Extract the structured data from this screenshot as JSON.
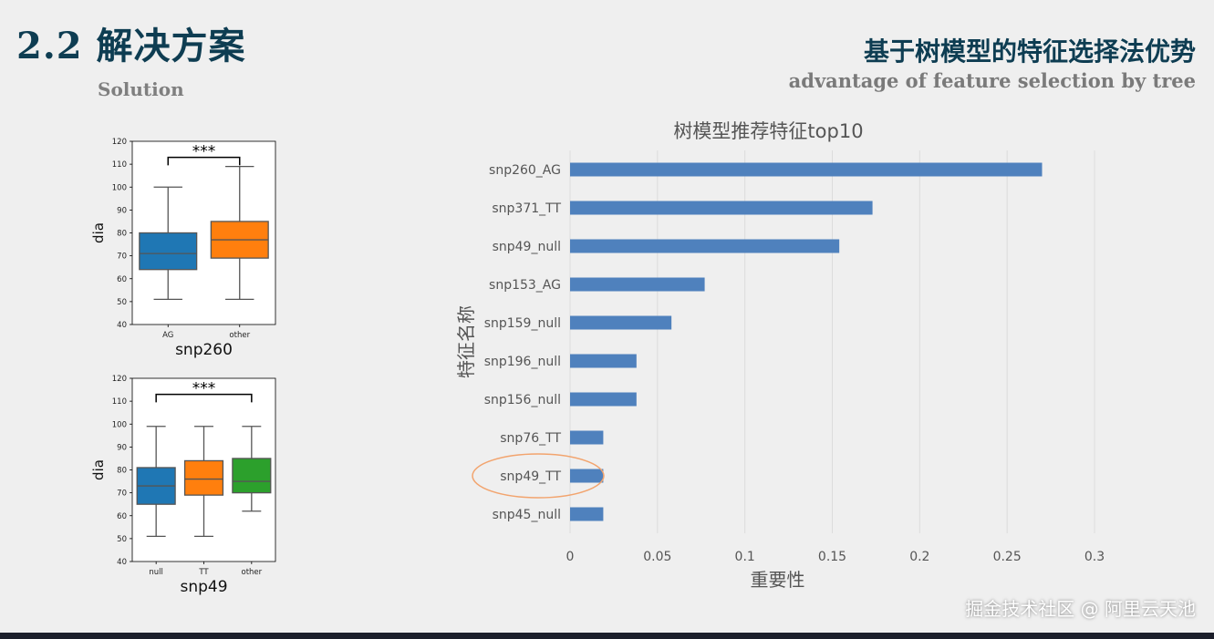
{
  "slide": {
    "title": "2.2 解决方案",
    "subtitle": "Solution",
    "right_title_cn": "基于树模型的特征选择法优势",
    "right_title_en": "advantage of feature selection by tree",
    "watermark": "掘金技术社区 @ 阿里云天池"
  },
  "colors": {
    "title": "#0e3d52",
    "bar": "#4f81bd",
    "box_blue": "#1f77b4",
    "box_orange": "#ff7f0e",
    "box_green": "#2ca02c",
    "highlight_ellipse": "#f2a46e"
  },
  "chart_data": [
    {
      "type": "box",
      "ylabel": "dia",
      "xlabel": "snp260",
      "ylim": [
        40,
        120
      ],
      "yticks": [
        "40",
        "50",
        "60",
        "70",
        "80",
        "90",
        "100",
        "110",
        "120"
      ],
      "significance": "***",
      "categories": [
        "AG",
        "other"
      ],
      "boxes": [
        {
          "category": "AG",
          "min": 51,
          "q1": 64,
          "median": 71,
          "q3": 80,
          "max": 100,
          "color": "#1f77b4"
        },
        {
          "category": "other",
          "min": 51,
          "q1": 69,
          "median": 77,
          "q3": 85,
          "max": 109,
          "color": "#ff7f0e"
        }
      ]
    },
    {
      "type": "box",
      "ylabel": "dia",
      "xlabel": "snp49",
      "ylim": [
        40,
        120
      ],
      "yticks": [
        "40",
        "50",
        "60",
        "70",
        "80",
        "90",
        "100",
        "110",
        "120"
      ],
      "significance": "***",
      "categories": [
        "null",
        "TT",
        "other"
      ],
      "boxes": [
        {
          "category": "null",
          "min": 51,
          "q1": 65,
          "median": 73,
          "q3": 81,
          "max": 99,
          "color": "#1f77b4"
        },
        {
          "category": "TT",
          "min": 51,
          "q1": 69,
          "median": 76,
          "q3": 84,
          "max": 99,
          "color": "#ff7f0e"
        },
        {
          "category": "other",
          "min": 62,
          "q1": 70,
          "median": 75,
          "q3": 85,
          "max": 99,
          "color": "#2ca02c"
        }
      ]
    },
    {
      "type": "bar",
      "orientation": "horizontal",
      "title": "树模型推荐特征top10",
      "xlabel": "重要性",
      "ylabel": "特征名称",
      "xlim": [
        0,
        0.3
      ],
      "xticks": [
        "0",
        "0.05",
        "0.1",
        "0.15",
        "0.2",
        "0.25",
        "0.3"
      ],
      "grid": "vertical",
      "categories": [
        "snp260_AG",
        "snp371_TT",
        "snp49_null",
        "snp153_AG",
        "snp159_null",
        "snp196_null",
        "snp156_null",
        "snp76_TT",
        "snp49_TT",
        "snp45_null"
      ],
      "values": [
        0.27,
        0.173,
        0.154,
        0.077,
        0.058,
        0.038,
        0.038,
        0.019,
        0.019,
        0.019
      ],
      "highlighted": "snp49_TT"
    }
  ]
}
